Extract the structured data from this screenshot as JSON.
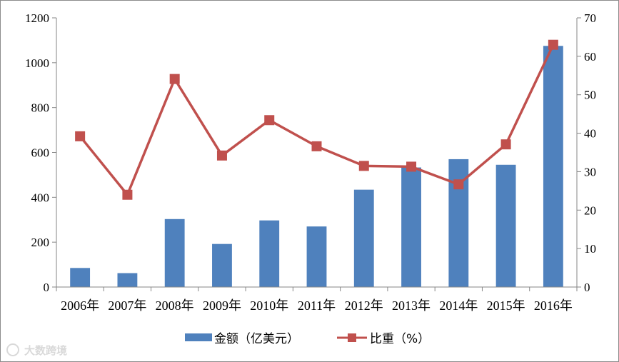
{
  "chart_data": {
    "type": "bar+line",
    "categories": [
      "2006年",
      "2007年",
      "2008年",
      "2009年",
      "2010年",
      "2011年",
      "2012年",
      "2013年",
      "2014年",
      "2015年",
      "2016年"
    ],
    "series": [
      {
        "name": "金额（亿美元）",
        "type": "bar",
        "axis": "left",
        "color": "#4f81bd",
        "values": [
          85,
          62,
          303,
          192,
          297,
          270,
          434,
          533,
          570,
          545,
          1075
        ]
      },
      {
        "name": "比重（%）",
        "type": "line",
        "axis": "right",
        "color": "#c0504d",
        "values": [
          39.2,
          24.0,
          54.1,
          34.2,
          43.4,
          36.6,
          31.5,
          31.3,
          26.7,
          37.1,
          63.0
        ]
      }
    ],
    "y_left": {
      "ylim": [
        0,
        1200
      ],
      "ticks": [
        0,
        200,
        400,
        600,
        800,
        1000,
        1200
      ]
    },
    "y_right": {
      "ylim": [
        0,
        70
      ],
      "ticks": [
        0,
        10,
        20,
        30,
        40,
        50,
        60,
        70
      ]
    },
    "legend": {
      "position": "bottom",
      "items": [
        "金额（亿美元）",
        "比重（%）"
      ]
    },
    "grid": false,
    "title": "",
    "xlabel": "",
    "ylabel": ""
  },
  "watermark": {
    "text": "大数跨境"
  }
}
